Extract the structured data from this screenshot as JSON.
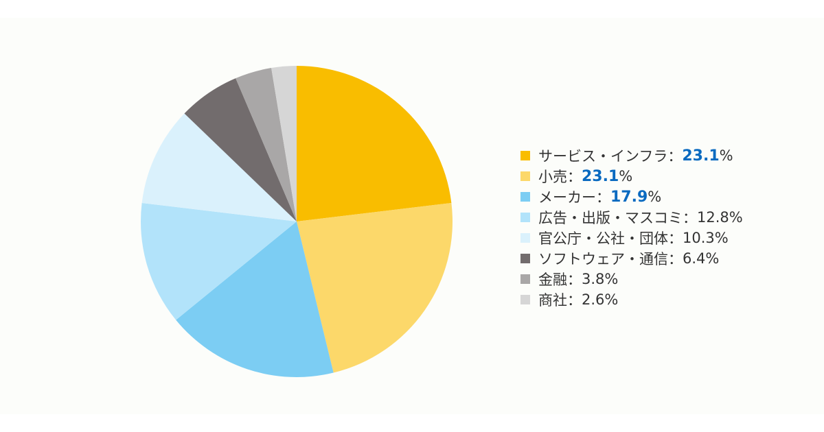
{
  "chart_data": {
    "type": "pie",
    "slices": [
      {
        "label": "サービス・インフラ",
        "value": 23.1,
        "color": "#f9bd00",
        "highlight": true
      },
      {
        "label": "小売",
        "value": 23.1,
        "color": "#fcd86a",
        "highlight": true
      },
      {
        "label": "メーカー",
        "value": 17.9,
        "color": "#7ccdf3",
        "highlight": true
      },
      {
        "label": "広告・出版・マスコミ",
        "value": 12.8,
        "color": "#b2e3fa",
        "highlight": false
      },
      {
        "label": "官公庁・公社・団体",
        "value": 10.3,
        "color": "#daf1fc",
        "highlight": false
      },
      {
        "label": "ソフトウェア・通信",
        "value": 6.4,
        "color": "#726c6d",
        "highlight": false
      },
      {
        "label": "金融",
        "value": 3.8,
        "color": "#a9a7a7",
        "highlight": false
      },
      {
        "label": "商社",
        "value": 2.6,
        "color": "#d6d6d6",
        "highlight": false
      }
    ],
    "separator": "：",
    "unit": "%",
    "legend_position": "right"
  }
}
